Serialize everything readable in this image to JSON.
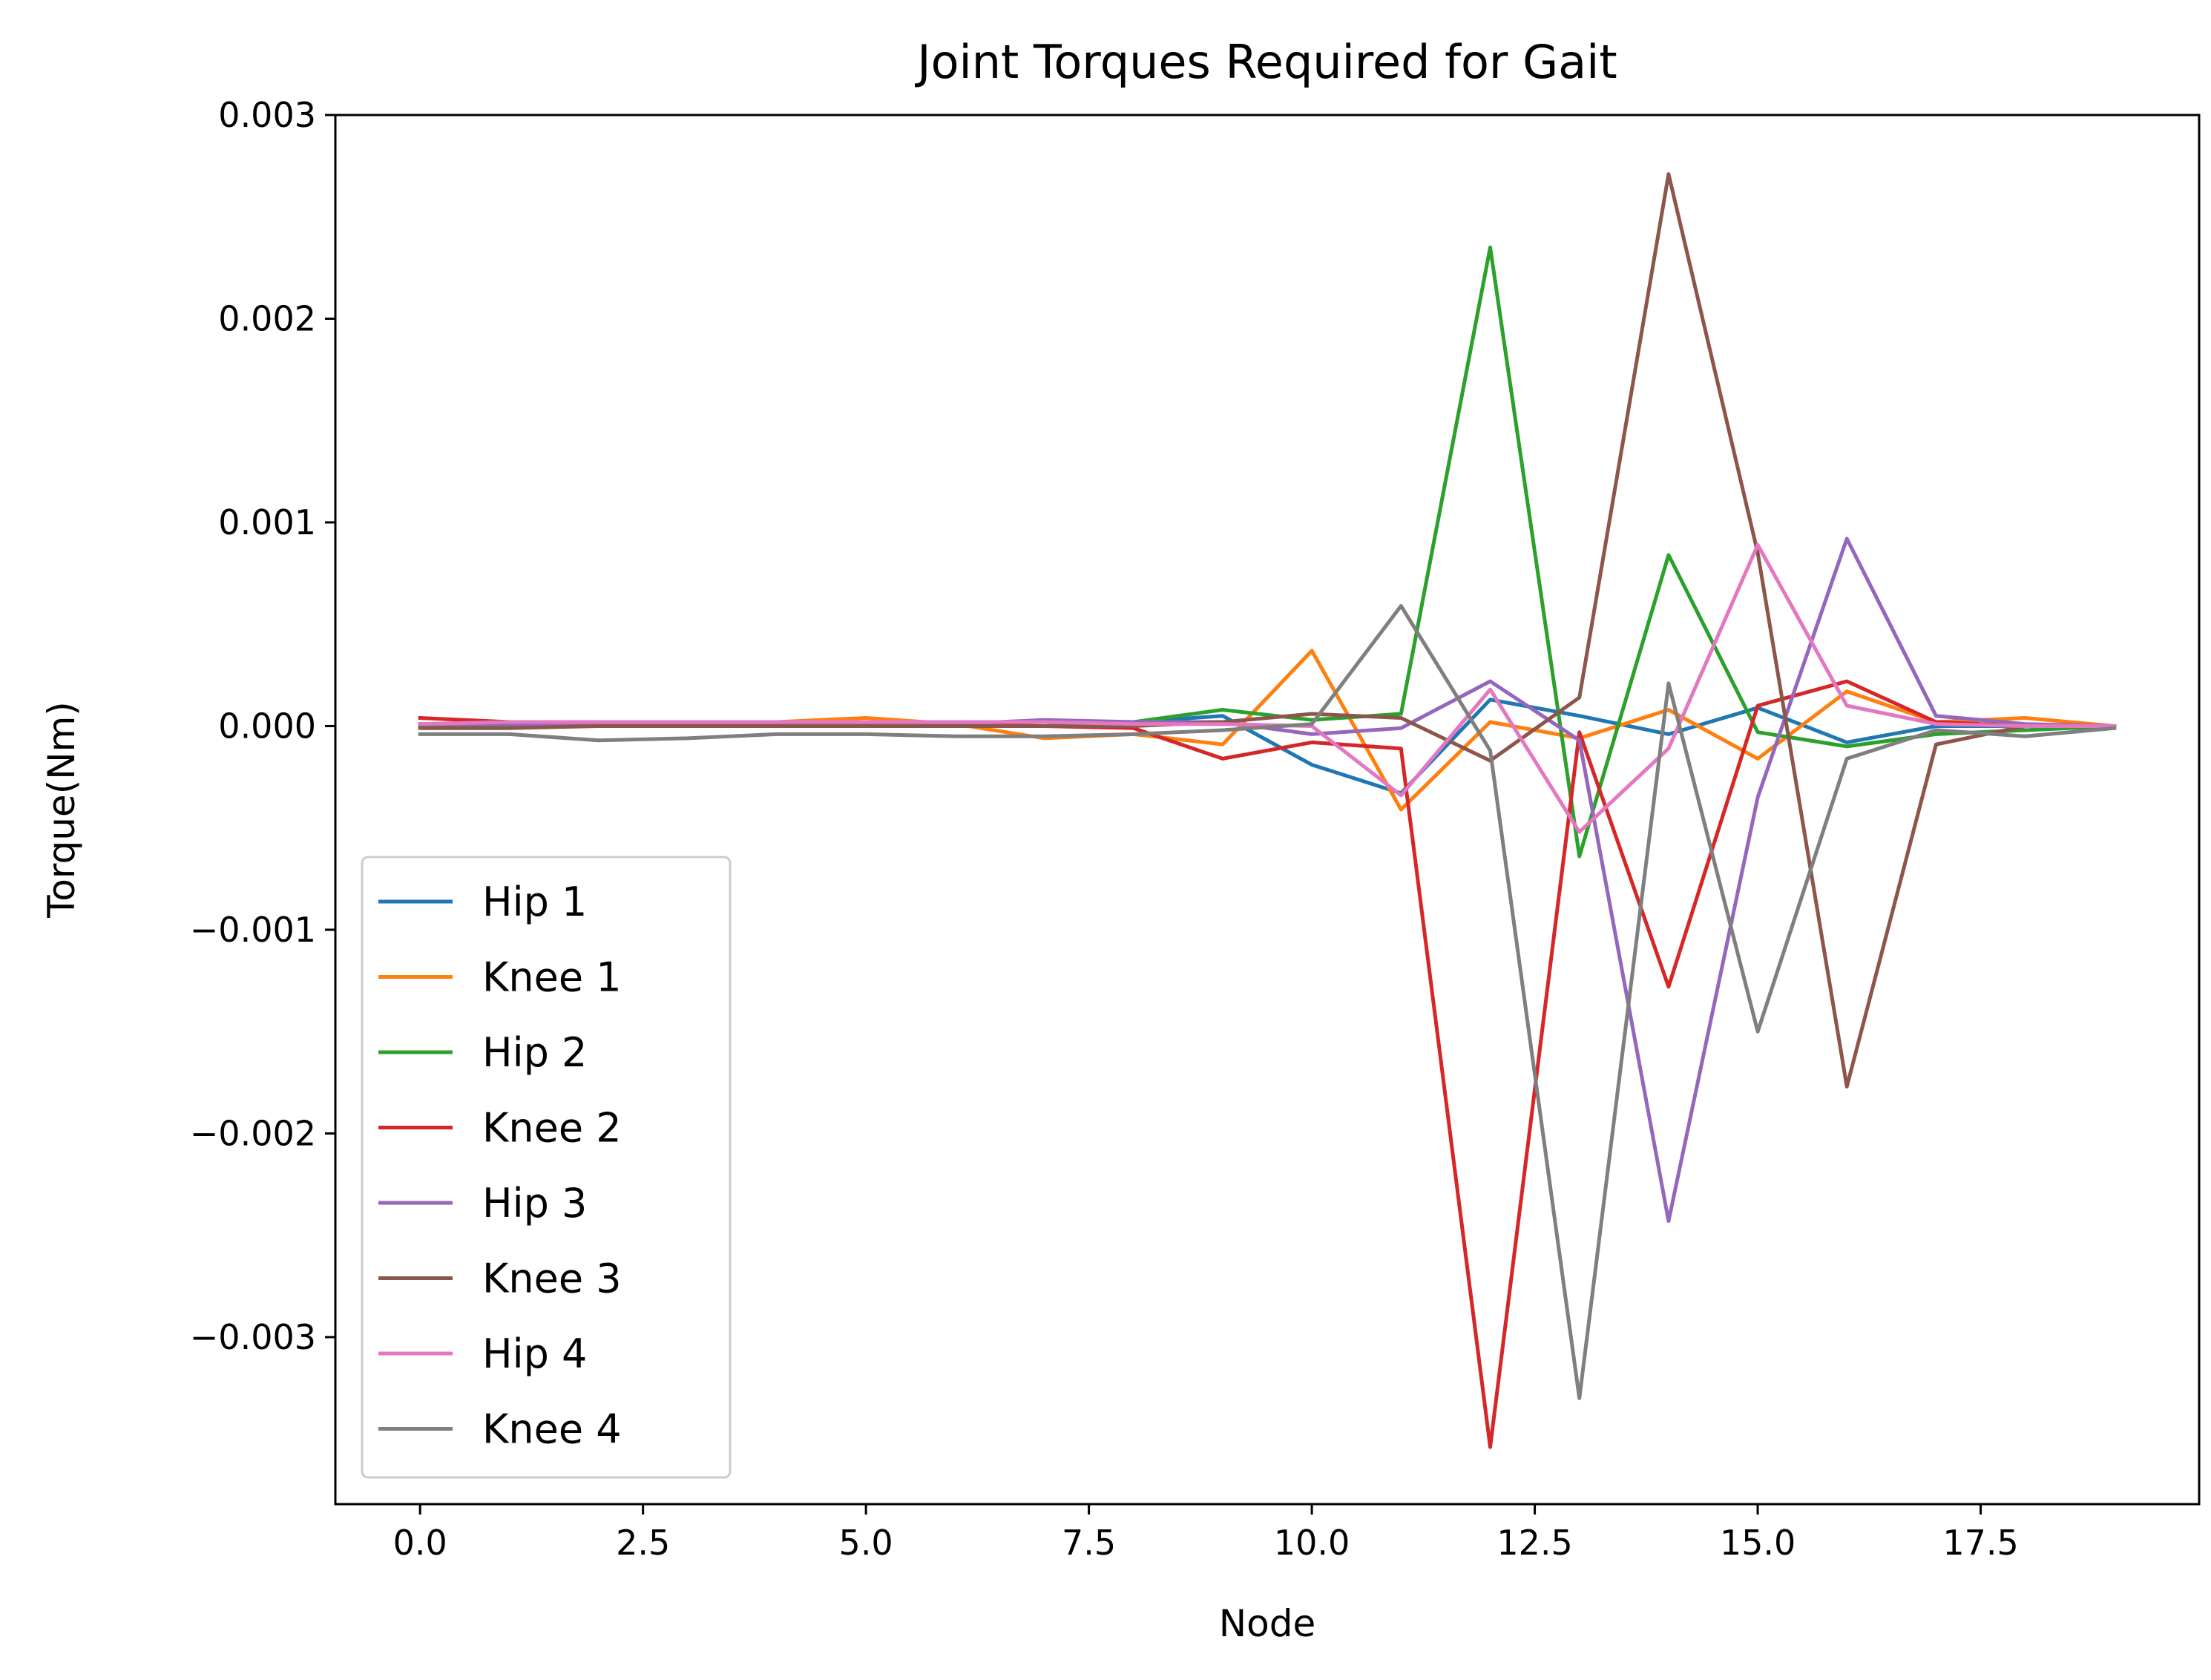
{
  "chart_data": {
    "type": "line",
    "title": "Joint Torques Required for Gait",
    "xlabel": "Node",
    "ylabel": "Torque(Nm)",
    "xlim": [
      -0.95,
      19.95
    ],
    "ylim": [
      -0.00382,
      0.003
    ],
    "xticks": [
      0.0,
      2.5,
      5.0,
      7.5,
      10.0,
      12.5,
      15.0,
      17.5
    ],
    "xtick_labels": [
      "0.0",
      "2.5",
      "5.0",
      "7.5",
      "10.0",
      "12.5",
      "15.0",
      "17.5"
    ],
    "yticks": [
      0.003,
      0.002,
      0.001,
      0.0,
      -0.001,
      -0.002,
      -0.003
    ],
    "ytick_labels": [
      "0.003",
      "0.002",
      "0.001",
      "0.000",
      "−0.001",
      "−0.002",
      "−0.003"
    ],
    "grid": false,
    "legend_position": "lower-left",
    "x": [
      0,
      1,
      2,
      3,
      4,
      5,
      6,
      7,
      8,
      9,
      10,
      11,
      12,
      13,
      14,
      15,
      16,
      17,
      18,
      19
    ],
    "series": [
      {
        "name": "Hip 1",
        "color": "#1f77b4",
        "values": [
          1e-05,
          1e-05,
          2e-05,
          2e-05,
          2e-05,
          2e-05,
          2e-05,
          2e-05,
          2e-05,
          5e-05,
          -0.00019,
          -0.00033,
          0.00013,
          5e-05,
          -4e-05,
          9e-05,
          -8e-05,
          0.0,
          0.0,
          0.0
        ]
      },
      {
        "name": "Knee 1",
        "color": "#ff7f0e",
        "values": [
          1e-05,
          2e-05,
          2e-05,
          2e-05,
          2e-05,
          4e-05,
          1e-05,
          -6e-05,
          -4e-05,
          -9e-05,
          0.00037,
          -0.00041,
          2e-05,
          -6e-05,
          8e-05,
          -0.00016,
          0.00017,
          2e-05,
          4e-05,
          0.0
        ]
      },
      {
        "name": "Hip 2",
        "color": "#2ca02c",
        "values": [
          0.0,
          0.0,
          0.0,
          0.0,
          0.0,
          0.0,
          0.0,
          0.0,
          2e-05,
          8e-05,
          3e-05,
          6e-05,
          0.00235,
          -0.00064,
          0.00084,
          -3e-05,
          -0.0001,
          -4e-05,
          -2e-05,
          0.0
        ]
      },
      {
        "name": "Knee 2",
        "color": "#d62728",
        "values": [
          4e-05,
          2e-05,
          2e-05,
          2e-05,
          1e-05,
          1e-05,
          1e-05,
          0.0,
          -1e-05,
          -0.00016,
          -8e-05,
          -0.00011,
          -0.00354,
          -3e-05,
          -0.00128,
          0.0001,
          0.00022,
          2e-05,
          0.0,
          0.0
        ]
      },
      {
        "name": "Hip 3",
        "color": "#9467bd",
        "values": [
          1e-05,
          1e-05,
          1e-05,
          1e-05,
          1e-05,
          1e-05,
          1e-05,
          3e-05,
          2e-05,
          2e-05,
          -4e-05,
          -1e-05,
          0.00022,
          -7e-05,
          -0.00243,
          -0.00035,
          0.00092,
          5e-05,
          1e-05,
          0.0
        ]
      },
      {
        "name": "Knee 3",
        "color": "#8c564b",
        "values": [
          -1e-05,
          -1e-05,
          0.0,
          0.0,
          0.0,
          0.0,
          0.0,
          0.0,
          0.0,
          2e-05,
          6e-05,
          4e-05,
          -0.00017,
          0.00014,
          0.00271,
          0.00085,
          -0.00177,
          -9e-05,
          0.0,
          0.0
        ]
      },
      {
        "name": "Hip 4",
        "color": "#e377c2",
        "values": [
          1e-05,
          2e-05,
          2e-05,
          2e-05,
          2e-05,
          2e-05,
          2e-05,
          2e-05,
          1e-05,
          1e-05,
          0.0,
          -0.00034,
          0.00018,
          -0.00052,
          -0.00011,
          0.00089,
          0.0001,
          1e-05,
          0.0,
          0.0
        ]
      },
      {
        "name": "Knee 4",
        "color": "#7f7f7f",
        "values": [
          -4e-05,
          -4e-05,
          -7e-05,
          -6e-05,
          -4e-05,
          -4e-05,
          -5e-05,
          -5e-05,
          -4e-05,
          -2e-05,
          1e-05,
          0.00059,
          -0.00012,
          -0.0033,
          0.00021,
          -0.0015,
          -0.00016,
          -2e-05,
          -5e-05,
          -1e-05
        ]
      }
    ]
  }
}
